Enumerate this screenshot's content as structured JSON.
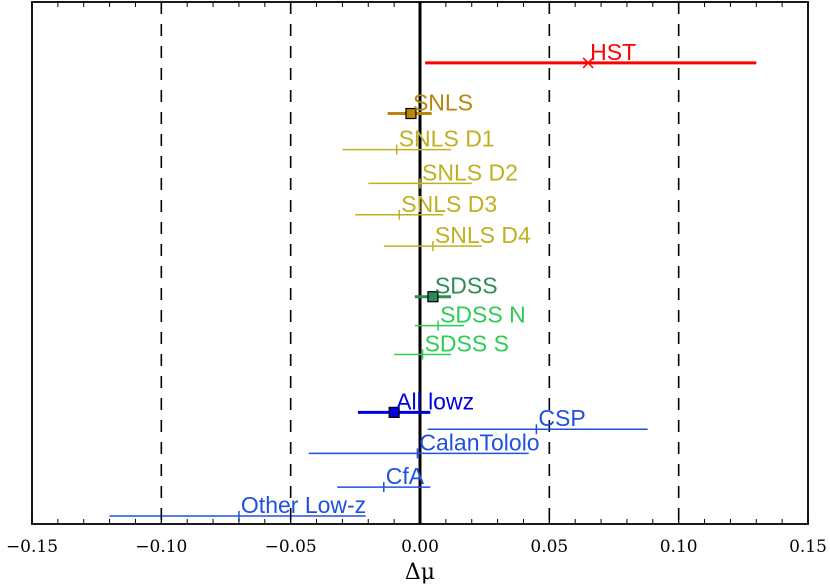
{
  "chart_data": {
    "type": "scatter",
    "xlabel": "Δμ",
    "xlim": [
      -0.15,
      0.15
    ],
    "x_ticks": [
      -0.15,
      -0.1,
      -0.05,
      0.0,
      0.05,
      0.1,
      0.15
    ],
    "x_tick_labels": [
      "−0.15",
      "−0.10",
      "−0.05",
      "0.00",
      "0.05",
      "0.10",
      "0.15"
    ],
    "vertical_dashed_lines": [
      -0.1,
      -0.05,
      0.05,
      0.1
    ],
    "vertical_solid_line": 0.0,
    "grid": false,
    "points": [
      {
        "label": "HST",
        "x": 0.065,
        "xerr_low": 0.002,
        "xerr_high": 0.13,
        "marker": "x",
        "color": "#ff0000",
        "row": 0.94
      },
      {
        "label": "SNLS",
        "x": -0.0035,
        "xerr_low": -0.0125,
        "xerr_high": 0.0045,
        "marker": "square",
        "color": "#b8860b",
        "row": 0.835
      },
      {
        "label": "SNLS D1",
        "x": -0.009,
        "xerr_low": -0.03,
        "xerr_high": 0.012,
        "marker": "tick",
        "color": "#c0b020",
        "row": 0.76
      },
      {
        "label": "SNLS D2",
        "x": 0.0,
        "xerr_low": -0.02,
        "xerr_high": 0.02,
        "marker": "tick",
        "color": "#c0b020",
        "row": 0.69
      },
      {
        "label": "SNLS D3",
        "x": -0.008,
        "xerr_low": -0.025,
        "xerr_high": 0.009,
        "marker": "tick",
        "color": "#c0b020",
        "row": 0.625
      },
      {
        "label": "SNLS D4",
        "x": 0.005,
        "xerr_low": -0.014,
        "xerr_high": 0.024,
        "marker": "tick",
        "color": "#c0b020",
        "row": 0.56
      },
      {
        "label": "SDSS",
        "x": 0.005,
        "xerr_low": -0.002,
        "xerr_high": 0.012,
        "marker": "square",
        "color": "#2e8b57",
        "row": 0.455
      },
      {
        "label": "SDSS N",
        "x": 0.007,
        "xerr_low": -0.002,
        "xerr_high": 0.017,
        "marker": "tick",
        "color": "#2ecc55",
        "row": 0.395
      },
      {
        "label": "SDSS S",
        "x": 0.001,
        "xerr_low": -0.01,
        "xerr_high": 0.012,
        "marker": "tick",
        "color": "#2ecc55",
        "row": 0.335
      },
      {
        "label": "All lowz",
        "x": -0.01,
        "xerr_low": -0.024,
        "xerr_high": 0.004,
        "marker": "square",
        "color": "#0000dd",
        "row": 0.215
      },
      {
        "label": "CSP",
        "x": 0.045,
        "xerr_low": 0.003,
        "xerr_high": 0.088,
        "marker": "tick",
        "color": "#2050e0",
        "row": 0.18
      },
      {
        "label": "CalanTololo",
        "x": -0.001,
        "xerr_low": -0.043,
        "xerr_high": 0.042,
        "marker": "tick",
        "color": "#2050e0",
        "row": 0.13
      },
      {
        "label": "CfA",
        "x": -0.014,
        "xerr_low": -0.032,
        "xerr_high": 0.004,
        "marker": "tick",
        "color": "#2050e0",
        "row": 0.06
      },
      {
        "label": "Other Low-z",
        "x": -0.07,
        "xerr_low": -0.12,
        "xerr_high": -0.021,
        "marker": "tick",
        "color": "#2050e0",
        "row": 0.0
      }
    ]
  }
}
